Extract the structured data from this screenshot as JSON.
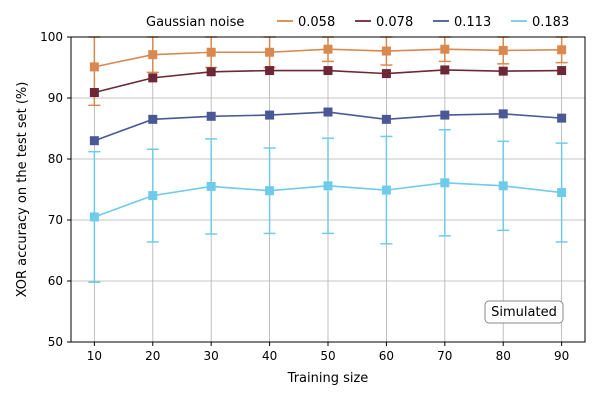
{
  "chart_data": {
    "type": "line",
    "title": "",
    "xlabel": "Training size",
    "ylabel": "XOR accuracy on the test set (%)",
    "x": [
      10,
      20,
      30,
      40,
      50,
      60,
      70,
      80,
      90
    ],
    "xticks": [
      10,
      20,
      30,
      40,
      50,
      60,
      70,
      80,
      90
    ],
    "yticks": [
      50,
      60,
      70,
      80,
      90,
      100
    ],
    "xlim": [
      6,
      94
    ],
    "ylim": [
      50,
      100
    ],
    "grid": true,
    "legend": {
      "title": "Gaussian noise",
      "placement": "top"
    },
    "annotation": "Simulated",
    "series": [
      {
        "name": "0.058",
        "color": "#d9894f",
        "values": [
          95.1,
          97.1,
          97.5,
          97.5,
          98.0,
          97.7,
          98.0,
          97.8,
          97.9
        ],
        "err_low": [
          6.3,
          2.9,
          2.5,
          2.5,
          2.0,
          2.3,
          2.0,
          2.2,
          2.1
        ],
        "err_high": [
          4.9,
          2.9,
          2.5,
          2.5,
          2.0,
          2.3,
          2.0,
          2.2,
          2.1
        ]
      },
      {
        "name": "0.078",
        "color": "#6e2736",
        "values": [
          90.9,
          93.3,
          94.3,
          94.5,
          94.5,
          94.0,
          94.6,
          94.4,
          94.5
        ],
        "err_low": [
          0.0,
          0.0,
          0.0,
          0.0,
          0.0,
          0.0,
          0.0,
          0.0,
          0.0
        ],
        "err_high": [
          0.0,
          0.0,
          0.0,
          0.0,
          0.0,
          0.0,
          0.0,
          0.0,
          0.0
        ]
      },
      {
        "name": "0.113",
        "color": "#4b5896",
        "values": [
          83.0,
          86.5,
          87.0,
          87.2,
          87.7,
          86.5,
          87.2,
          87.4,
          86.7
        ],
        "err_low": [
          0.0,
          0.0,
          0.0,
          0.0,
          0.0,
          0.0,
          0.0,
          0.0,
          0.0
        ],
        "err_high": [
          0.0,
          0.0,
          0.0,
          0.0,
          0.0,
          0.0,
          0.0,
          0.0,
          0.0
        ]
      },
      {
        "name": "0.183",
        "color": "#6fcbea",
        "values": [
          70.5,
          74.0,
          75.5,
          74.8,
          75.6,
          74.9,
          76.1,
          75.6,
          74.5
        ],
        "err_low": [
          10.7,
          7.6,
          7.8,
          7.0,
          7.8,
          8.8,
          8.7,
          7.3,
          8.1
        ],
        "err_high": [
          10.7,
          7.6,
          7.8,
          7.0,
          7.8,
          8.8,
          8.7,
          7.3,
          8.1
        ]
      }
    ]
  }
}
